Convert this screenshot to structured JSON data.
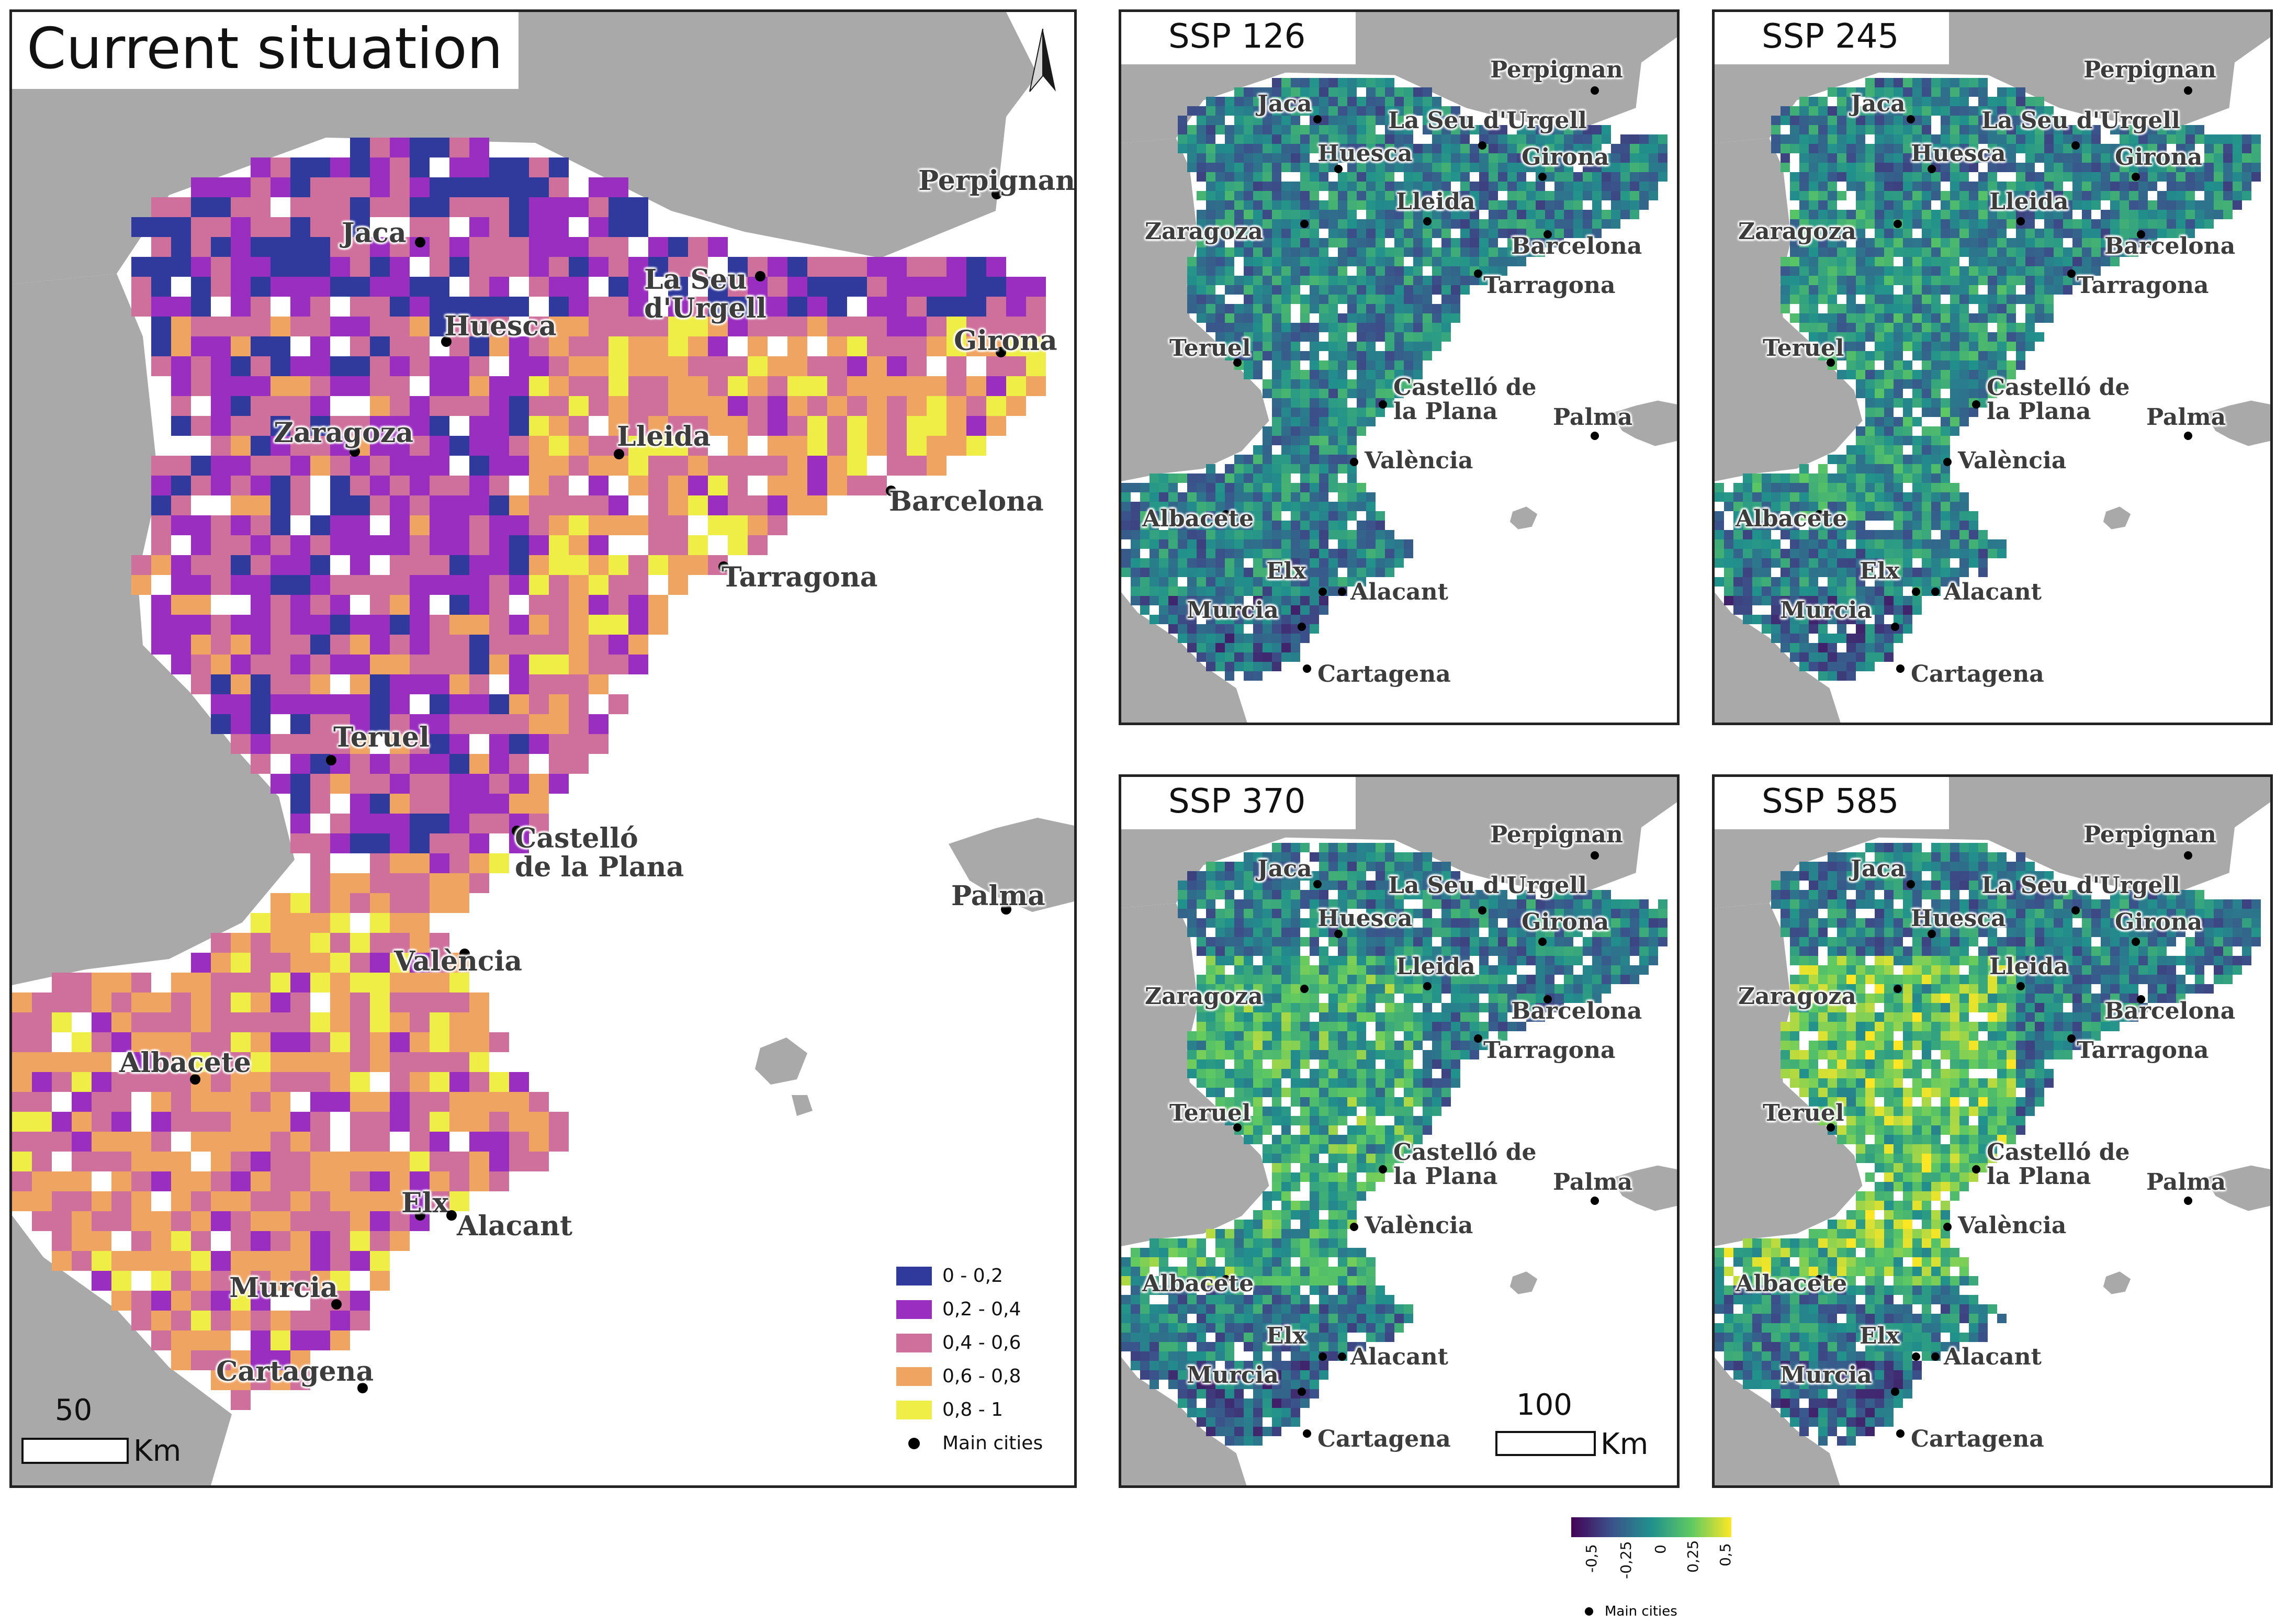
{
  "main_panel": {
    "title": "Current situation",
    "cities": [
      {
        "name": "Jaca"
      },
      {
        "name": "Huesca"
      },
      {
        "name": "La Seu\nd'Urgell"
      },
      {
        "name": "Perpignan"
      },
      {
        "name": "Girona"
      },
      {
        "name": "Zaragoza"
      },
      {
        "name": "Lleida"
      },
      {
        "name": "Barcelona"
      },
      {
        "name": "Tarragona"
      },
      {
        "name": "Teruel"
      },
      {
        "name": "Castelló\nde la Plana"
      },
      {
        "name": "Palma"
      },
      {
        "name": "València"
      },
      {
        "name": "Albacete"
      },
      {
        "name": "Elx"
      },
      {
        "name": "Alacant"
      },
      {
        "name": "Murcia"
      },
      {
        "name": "Cartagena"
      }
    ],
    "legend": {
      "items": [
        {
          "label": "0 - 0,2",
          "color": "#303a9c"
        },
        {
          "label": "0,2 - 0,4",
          "color": "#9a2ec0"
        },
        {
          "label": "0,4 - 0,6",
          "color": "#cf6f9c"
        },
        {
          "label": "0,6 - 0,8",
          "color": "#f0a462"
        },
        {
          "label": "0,8 - 1",
          "color": "#eeee46"
        }
      ],
      "cities_label": "Main cities"
    },
    "scale": {
      "value": "50",
      "unit": "Km"
    }
  },
  "scenario_panels": [
    {
      "title": "SSP 126",
      "seed": 11,
      "hot": 0.05
    },
    {
      "title": "SSP 245",
      "seed": 23,
      "hot": 0.15
    },
    {
      "title": "SSP 370",
      "seed": 37,
      "hot": 0.35
    },
    {
      "title": "SSP 585",
      "seed": 51,
      "hot": 0.55
    }
  ],
  "scenario_cities": [
    {
      "name": "Perpignan"
    },
    {
      "name": "Jaca"
    },
    {
      "name": "La Seu d'Urgell"
    },
    {
      "name": "Huesca"
    },
    {
      "name": "Lleida"
    },
    {
      "name": "Girona"
    },
    {
      "name": "Zaragoza"
    },
    {
      "name": "Barcelona"
    },
    {
      "name": "Tarragona"
    },
    {
      "name": "Teruel"
    },
    {
      "name": "Castelló de\nla Plana"
    },
    {
      "name": "Palma"
    },
    {
      "name": "València"
    },
    {
      "name": "Albacete"
    },
    {
      "name": "Elx"
    },
    {
      "name": "Alacant"
    },
    {
      "name": "Murcia"
    },
    {
      "name": "Cartagena"
    }
  ],
  "scenario_scale": {
    "value": "100",
    "unit": "Km"
  },
  "colorbar": {
    "ticks": [
      "-0,5",
      "-0,25",
      "0",
      "0,25",
      "0,5"
    ],
    "colors": [
      "#440154",
      "#3b528b",
      "#21918c",
      "#5ec962",
      "#fde725"
    ],
    "cities_label": "Main cities"
  },
  "colors": {
    "land": "#a9a9a9",
    "sea": "#ffffff",
    "border": "#222222"
  }
}
